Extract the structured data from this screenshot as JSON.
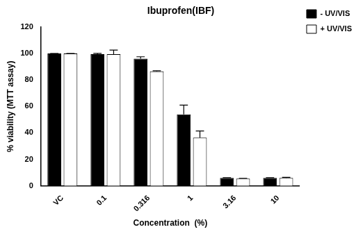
{
  "chart_data": {
    "type": "bar",
    "title": "Ibuprofen(IBF)",
    "x_label": "Concentration  (%)",
    "y_label": "% viability (MTT assay)",
    "categories": [
      "VC",
      "0.1",
      "0.316",
      "1",
      "3.16",
      "10"
    ],
    "series": [
      {
        "name": "- UV/VIS",
        "color": "#000000",
        "values": [
          100,
          99.5,
          96,
          54,
          6,
          6
        ],
        "errors": [
          0,
          0.5,
          1.5,
          7,
          0.3,
          0.3
        ]
      },
      {
        "name": "+ UV/VIS",
        "color": "#ffffff",
        "values": [
          100,
          99.5,
          86.5,
          36.5,
          5.5,
          6
        ],
        "errors": [
          0,
          3,
          0.5,
          5,
          0.3,
          0.5
        ]
      }
    ],
    "ylim": [
      0,
      120
    ],
    "yticks": [
      0,
      20,
      40,
      60,
      80,
      100,
      120
    ],
    "grid": false,
    "legend": "right"
  }
}
